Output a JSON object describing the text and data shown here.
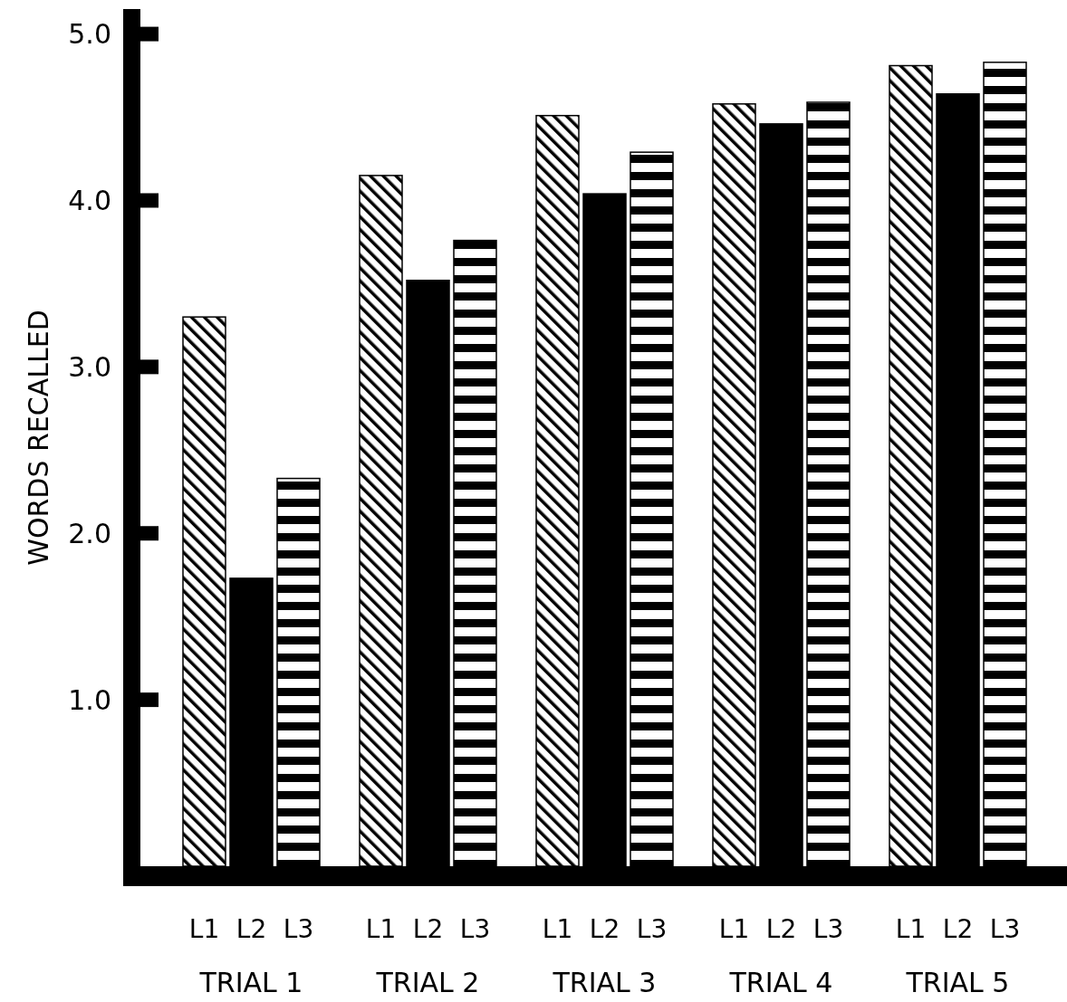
{
  "chart_data": {
    "type": "bar",
    "ylabel": "WORDS RECALLED",
    "categories": [
      "TRIAL 1",
      "TRIAL 2",
      "TRIAL 3",
      "TRIAL 4",
      "TRIAL 5"
    ],
    "series": [
      {
        "name": "L1",
        "color": "#000000",
        "values": [
          3.3,
          4.15,
          4.51,
          4.58,
          4.81
        ]
      },
      {
        "name": "L2",
        "color": "#000000",
        "values": [
          1.73,
          3.52,
          4.04,
          4.46,
          4.64
        ]
      },
      {
        "name": "L3",
        "color": "#000000",
        "values": [
          2.33,
          3.76,
          4.29,
          4.59,
          4.83
        ]
      }
    ],
    "ylim": [
      0,
      5.15
    ],
    "yticks": [
      {
        "value": 1,
        "label": "1.0"
      },
      {
        "value": 2,
        "label": "2.0"
      },
      {
        "value": 3,
        "label": "3.0"
      },
      {
        "value": 4,
        "label": "4.0"
      },
      {
        "value": 5,
        "label": "5.0"
      }
    ],
    "grid": false
  }
}
